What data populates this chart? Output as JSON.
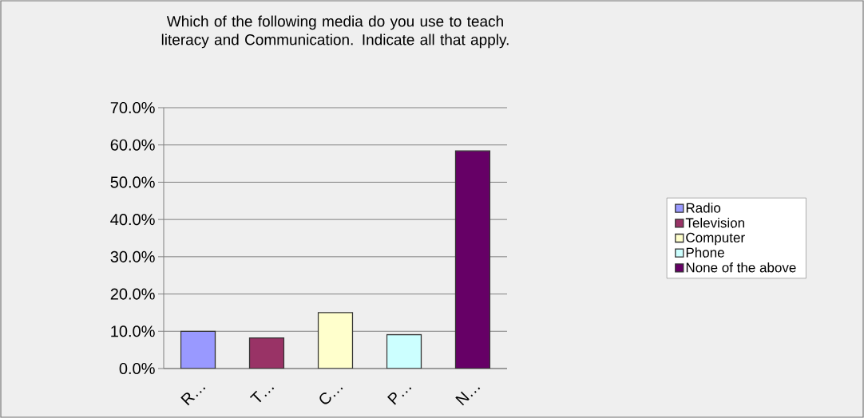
{
  "chart_data": {
    "type": "bar",
    "title": "Which of the following media do you use to teach literacy and Communication.   Indicate all that apply.",
    "categories": [
      "R…",
      "T…",
      "C…",
      "P…",
      "N…"
    ],
    "series": [
      {
        "name": "Radio",
        "color": "#9999ff",
        "values": [
          10.0,
          null,
          null,
          null,
          null
        ]
      },
      {
        "name": "Television",
        "color": "#993366",
        "values": [
          null,
          8.2,
          null,
          null,
          null
        ]
      },
      {
        "name": "Computer",
        "color": "#ffffcc",
        "values": [
          null,
          null,
          15.0,
          null,
          null
        ]
      },
      {
        "name": "Phone",
        "color": "#ccffff",
        "values": [
          null,
          null,
          null,
          9.1,
          null
        ]
      },
      {
        "name": "None of the above",
        "color": "#660066",
        "values": [
          null,
          null,
          null,
          null,
          58.4
        ]
      }
    ],
    "ylim": [
      0,
      70
    ],
    "yticks": [
      {
        "value": 0,
        "label": "0.0%"
      },
      {
        "value": 10,
        "label": "10.0%"
      },
      {
        "value": 20,
        "label": "20.0%"
      },
      {
        "value": 30,
        "label": "30.0%"
      },
      {
        "value": 40,
        "label": "40.0%"
      },
      {
        "value": 50,
        "label": "50.0%"
      },
      {
        "value": 60,
        "label": "60.0%"
      },
      {
        "value": 70,
        "label": "70.0%"
      }
    ],
    "grid": "y",
    "legend": "right"
  }
}
